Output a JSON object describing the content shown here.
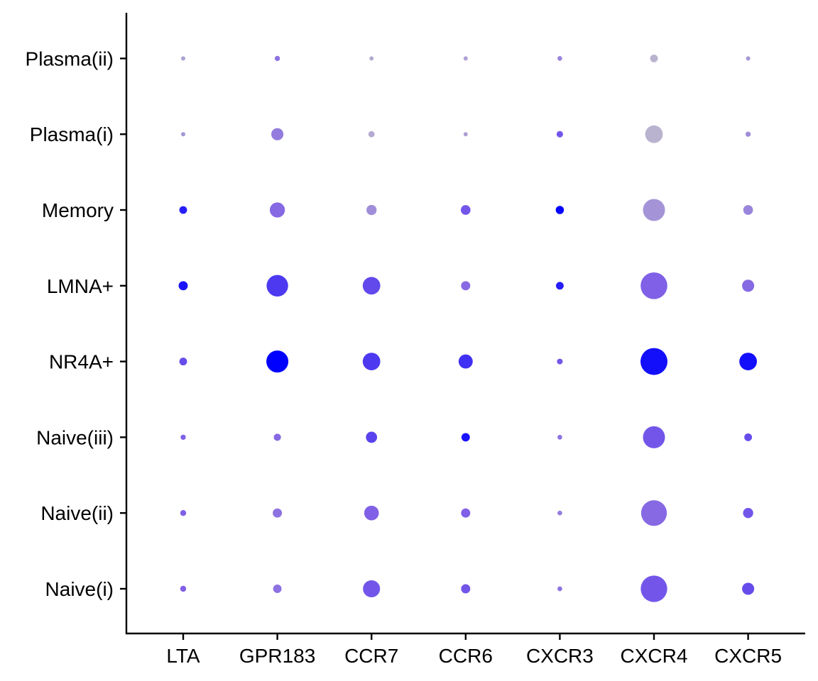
{
  "chart_data": {
    "type": "scatter",
    "subtype": "dot-plot",
    "title": "",
    "xlabel": "",
    "ylabel": "",
    "x_categories": [
      "LTA",
      "GPR183",
      "CCR7",
      "CCR6",
      "CXCR3",
      "CXCR4",
      "CXCR5"
    ],
    "y_categories": [
      "Naive(i)",
      "Naive(ii)",
      "Naive(iii)",
      "NR4A+",
      "LMNA+",
      "Memory",
      "Plasma(i)",
      "Plasma(ii)"
    ],
    "legend": "none",
    "grid": false,
    "color_scale": {
      "low": "#c0bccc",
      "mid": "#8060e6",
      "high": "#0000ff"
    },
    "points": [
      {
        "x": "LTA",
        "y": "Naive(i)",
        "size": 0.15,
        "color": 0.5
      },
      {
        "x": "GPR183",
        "y": "Naive(i)",
        "size": 0.25,
        "color": 0.4
      },
      {
        "x": "CCR7",
        "y": "Naive(i)",
        "size": 0.6,
        "color": 0.55
      },
      {
        "x": "CCR6",
        "y": "Naive(i)",
        "size": 0.28,
        "color": 0.55
      },
      {
        "x": "CXCR3",
        "y": "Naive(i)",
        "size": 0.1,
        "color": 0.4
      },
      {
        "x": "CXCR4",
        "y": "Naive(i)",
        "size": 0.98,
        "color": 0.55
      },
      {
        "x": "CXCR5",
        "y": "Naive(i)",
        "size": 0.4,
        "color": 0.6
      },
      {
        "x": "LTA",
        "y": "Naive(ii)",
        "size": 0.15,
        "color": 0.5
      },
      {
        "x": "GPR183",
        "y": "Naive(ii)",
        "size": 0.28,
        "color": 0.4
      },
      {
        "x": "CCR7",
        "y": "Naive(ii)",
        "size": 0.5,
        "color": 0.5
      },
      {
        "x": "CCR6",
        "y": "Naive(ii)",
        "size": 0.28,
        "color": 0.5
      },
      {
        "x": "CXCR3",
        "y": "Naive(ii)",
        "size": 0.1,
        "color": 0.35
      },
      {
        "x": "CXCR4",
        "y": "Naive(ii)",
        "size": 0.95,
        "color": 0.45
      },
      {
        "x": "CXCR5",
        "y": "Naive(ii)",
        "size": 0.32,
        "color": 0.55
      },
      {
        "x": "LTA",
        "y": "Naive(iii)",
        "size": 0.12,
        "color": 0.5
      },
      {
        "x": "GPR183",
        "y": "Naive(iii)",
        "size": 0.2,
        "color": 0.45
      },
      {
        "x": "CCR7",
        "y": "Naive(iii)",
        "size": 0.36,
        "color": 0.65
      },
      {
        "x": "CCR6",
        "y": "Naive(iii)",
        "size": 0.25,
        "color": 0.9
      },
      {
        "x": "CXCR3",
        "y": "Naive(iii)",
        "size": 0.1,
        "color": 0.4
      },
      {
        "x": "CXCR4",
        "y": "Naive(iii)",
        "size": 0.8,
        "color": 0.55
      },
      {
        "x": "CXCR5",
        "y": "Naive(iii)",
        "size": 0.22,
        "color": 0.6
      },
      {
        "x": "LTA",
        "y": "NR4A+",
        "size": 0.22,
        "color": 0.6
      },
      {
        "x": "GPR183",
        "y": "NR4A+",
        "size": 0.8,
        "color": 1.0
      },
      {
        "x": "CCR7",
        "y": "NR4A+",
        "size": 0.62,
        "color": 0.7
      },
      {
        "x": "CCR6",
        "y": "NR4A+",
        "size": 0.48,
        "color": 0.75
      },
      {
        "x": "CXCR3",
        "y": "NR4A+",
        "size": 0.14,
        "color": 0.55
      },
      {
        "x": "CXCR4",
        "y": "NR4A+",
        "size": 1.0,
        "color": 0.92
      },
      {
        "x": "CXCR5",
        "y": "NR4A+",
        "size": 0.62,
        "color": 0.92
      },
      {
        "x": "LTA",
        "y": "LMNA+",
        "size": 0.28,
        "color": 0.9
      },
      {
        "x": "GPR183",
        "y": "LMNA+",
        "size": 0.78,
        "color": 0.7
      },
      {
        "x": "CCR7",
        "y": "LMNA+",
        "size": 0.62,
        "color": 0.62
      },
      {
        "x": "CCR6",
        "y": "LMNA+",
        "size": 0.28,
        "color": 0.45
      },
      {
        "x": "CXCR3",
        "y": "LMNA+",
        "size": 0.22,
        "color": 0.85
      },
      {
        "x": "CXCR4",
        "y": "LMNA+",
        "size": 0.99,
        "color": 0.5
      },
      {
        "x": "CXCR5",
        "y": "LMNA+",
        "size": 0.4,
        "color": 0.45
      },
      {
        "x": "LTA",
        "y": "Memory",
        "size": 0.22,
        "color": 0.85
      },
      {
        "x": "GPR183",
        "y": "Memory",
        "size": 0.52,
        "color": 0.45
      },
      {
        "x": "CCR7",
        "y": "Memory",
        "size": 0.32,
        "color": 0.25
      },
      {
        "x": "CCR6",
        "y": "Memory",
        "size": 0.3,
        "color": 0.55
      },
      {
        "x": "CXCR3",
        "y": "Memory",
        "size": 0.24,
        "color": 1.0
      },
      {
        "x": "CXCR4",
        "y": "Memory",
        "size": 0.8,
        "color": 0.22
      },
      {
        "x": "CXCR5",
        "y": "Memory",
        "size": 0.3,
        "color": 0.3
      },
      {
        "x": "LTA",
        "y": "Plasma(i)",
        "size": 0.08,
        "color": 0.2
      },
      {
        "x": "GPR183",
        "y": "Plasma(i)",
        "size": 0.4,
        "color": 0.35
      },
      {
        "x": "CCR7",
        "y": "Plasma(i)",
        "size": 0.16,
        "color": 0.1
      },
      {
        "x": "CCR6",
        "y": "Plasma(i)",
        "size": 0.08,
        "color": 0.15
      },
      {
        "x": "CXCR3",
        "y": "Plasma(i)",
        "size": 0.17,
        "color": 0.55
      },
      {
        "x": "CXCR4",
        "y": "Plasma(i)",
        "size": 0.62,
        "color": 0.05
      },
      {
        "x": "CXCR5",
        "y": "Plasma(i)",
        "size": 0.12,
        "color": 0.25
      },
      {
        "x": "LTA",
        "y": "Plasma(ii)",
        "size": 0.08,
        "color": 0.15
      },
      {
        "x": "GPR183",
        "y": "Plasma(ii)",
        "size": 0.12,
        "color": 0.4
      },
      {
        "x": "CCR7",
        "y": "Plasma(ii)",
        "size": 0.08,
        "color": 0.1
      },
      {
        "x": "CCR6",
        "y": "Plasma(ii)",
        "size": 0.08,
        "color": 0.15
      },
      {
        "x": "CXCR3",
        "y": "Plasma(ii)",
        "size": 0.1,
        "color": 0.3
      },
      {
        "x": "CXCR4",
        "y": "Plasma(ii)",
        "size": 0.22,
        "color": 0.05
      },
      {
        "x": "CXCR5",
        "y": "Plasma(ii)",
        "size": 0.08,
        "color": 0.2
      }
    ]
  }
}
